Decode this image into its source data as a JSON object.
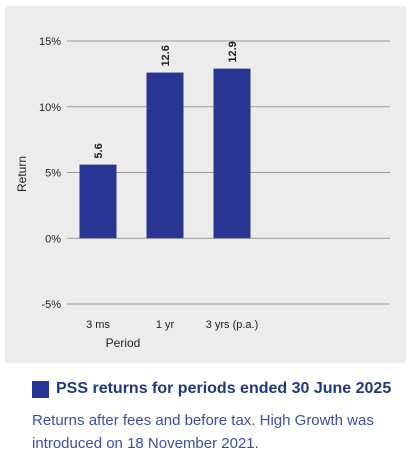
{
  "chart_data": {
    "type": "bar",
    "categories": [
      "3 ms",
      "1 yr",
      "3 yrs (p.a.)"
    ],
    "values": [
      5.6,
      12.6,
      12.9
    ],
    "data_labels": [
      "5.6",
      "12.6",
      "12.9"
    ],
    "xlabel": "Period",
    "ylabel": "Return",
    "ylim": [
      -5,
      15
    ],
    "yticks": [
      15,
      10,
      5,
      0,
      -5
    ],
    "ytick_labels": [
      "15%",
      "10%",
      "5%",
      "0%",
      "-5%"
    ],
    "grid": true,
    "bar_color": "#283593",
    "gridline_color": "#9a9a9a"
  },
  "legend": {
    "label": "PSS returns for periods ended 30 June 2025",
    "color": "#283593"
  },
  "note": "Returns after fees and before tax. High Growth was introduced on 18 November 2021."
}
